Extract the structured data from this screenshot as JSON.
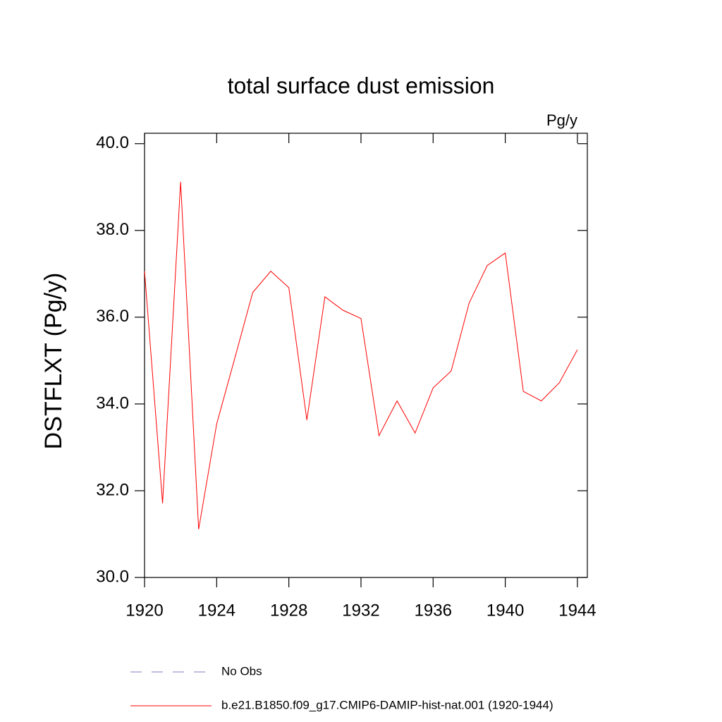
{
  "chart_data": {
    "type": "line",
    "title": "total surface dust emission",
    "units_label": "Pg/y",
    "y_label": "DSTFLXT  (Pg/y)",
    "x": [
      1920,
      1921,
      1922,
      1923,
      1924,
      1925,
      1926,
      1927,
      1928,
      1929,
      1930,
      1931,
      1932,
      1933,
      1934,
      1935,
      1936,
      1937,
      1938,
      1939,
      1940,
      1941,
      1942,
      1943,
      1944
    ],
    "series": [
      {
        "name": "b.e21.B1850.f09_g17.CMIP6-DAMIP-hist-nat.001 (1920-1944)",
        "color": "#ff0000",
        "values": [
          37.06,
          31.71,
          39.12,
          31.11,
          33.54,
          35.05,
          36.57,
          37.06,
          36.68,
          33.63,
          36.47,
          36.16,
          35.97,
          33.27,
          34.07,
          33.33,
          34.37,
          34.76,
          36.33,
          37.19,
          37.48,
          34.29,
          34.07,
          34.49,
          35.25
        ]
      }
    ],
    "legend_extra": [
      {
        "name": "No Obs",
        "color": "#7f7fbf",
        "dashed": true
      }
    ],
    "xlim": [
      1920,
      1944.55
    ],
    "ylim": [
      30,
      40.24
    ],
    "xticks": [
      1920,
      1924,
      1928,
      1932,
      1936,
      1940,
      1944
    ],
    "yticks": [
      {
        "value": 30,
        "label": "30.0"
      },
      {
        "value": 32,
        "label": "32.0"
      },
      {
        "value": 34,
        "label": "34.0"
      },
      {
        "value": 36,
        "label": "36.0"
      },
      {
        "value": 38,
        "label": "38.0"
      },
      {
        "value": 40,
        "label": "40.0"
      }
    ],
    "grid": false
  }
}
